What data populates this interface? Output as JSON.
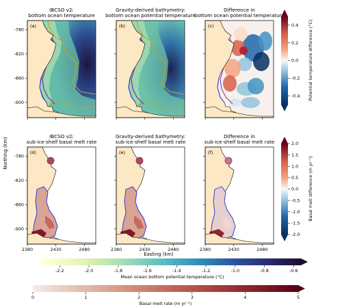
{
  "axes": {
    "ylabel": "Northing (km)",
    "xlabel": "Easting (km)",
    "yticks": [
      "-780",
      "-820",
      "-860",
      "-900"
    ],
    "xticks": [
      "2380",
      "2430",
      "2480"
    ]
  },
  "chart_data": [
    {
      "type": "heatmap",
      "panel": "(a)",
      "title_line1": "IBCSO v2:",
      "title_line2": "bottom ocean temperature",
      "xlim": [
        2380,
        2500
      ],
      "ylim": [
        -925,
        -765
      ],
      "colorbar": "temperature"
    },
    {
      "type": "heatmap",
      "panel": "(b)",
      "title_line1": "Gravity-derived bathymetry:",
      "title_line2": "bottom ocean potential temperature",
      "xlim": [
        2380,
        2500
      ],
      "ylim": [
        -925,
        -765
      ],
      "colorbar": "temperature"
    },
    {
      "type": "heatmap",
      "panel": "(c)",
      "title_line1": "Difference in",
      "title_line2": "bottom ocean potential temperature",
      "xlim": [
        2380,
        2500
      ],
      "ylim": [
        -925,
        -765
      ],
      "colorbar": "temperature_difference"
    },
    {
      "type": "heatmap",
      "panel": "(d)",
      "title_line1": "IBCSO v2:",
      "title_line2": "sub-ice-shelf basal melt rate",
      "xlim": [
        2380,
        2500
      ],
      "ylim": [
        -925,
        -765
      ],
      "colorbar": "melt"
    },
    {
      "type": "heatmap",
      "panel": "(e)",
      "title_line1": "Gravity-derived bathymetry:",
      "title_line2": "sub-ice-shelf basal melt rate",
      "xlim": [
        2380,
        2500
      ],
      "ylim": [
        -925,
        -765
      ],
      "colorbar": "melt"
    },
    {
      "type": "heatmap",
      "panel": "(f)",
      "title_line1": "Difference in",
      "title_line2": "sub-ice-shelf basal melt rate",
      "xlim": [
        2380,
        2500
      ],
      "ylim": [
        -925,
        -765
      ],
      "colorbar": "melt_difference"
    }
  ],
  "colorbars": {
    "temp_diff": {
      "label": "Potential temperature difference (°C)",
      "ticks": [
        "0.4",
        "0.2",
        "0.0",
        "-0.2",
        "-0.4"
      ],
      "range": [
        -0.5,
        0.5
      ]
    },
    "melt_diff": {
      "label": "Basal melt difference (m yr⁻¹)",
      "ticks": [
        "2.0",
        "1.5",
        "1.0",
        "0.5",
        "0.0",
        "-0.5",
        "-1.0",
        "-1.5",
        "-2.0"
      ],
      "range": [
        -2.0,
        2.0
      ]
    },
    "temperature": {
      "label": "Mean ocean bottom potential temperature (°C)",
      "ticks": [
        "-2.2",
        "-2.0",
        "-1.8",
        "-1.6",
        "-1.4",
        "-1.2",
        "-1.0",
        "-0.8",
        "-0.6"
      ],
      "range": [
        -2.3,
        -0.55
      ]
    },
    "melt": {
      "label": "Basal melt rate (m yr⁻¹)",
      "ticks": [
        "0",
        "1",
        "2",
        "3",
        "4",
        "5"
      ],
      "range": [
        0,
        5
      ]
    }
  },
  "colors": {
    "land": "#fce8c4",
    "contour_gold": "#c9a227",
    "contour_purple": "#7b2f9e",
    "coast_blue": "#1f2bd6",
    "temp_low": "#ffffcc",
    "temp_mid": "#41b6c4",
    "temp_high": "#081d58",
    "diff_pos": "#67001f",
    "diff_neg": "#053061"
  }
}
